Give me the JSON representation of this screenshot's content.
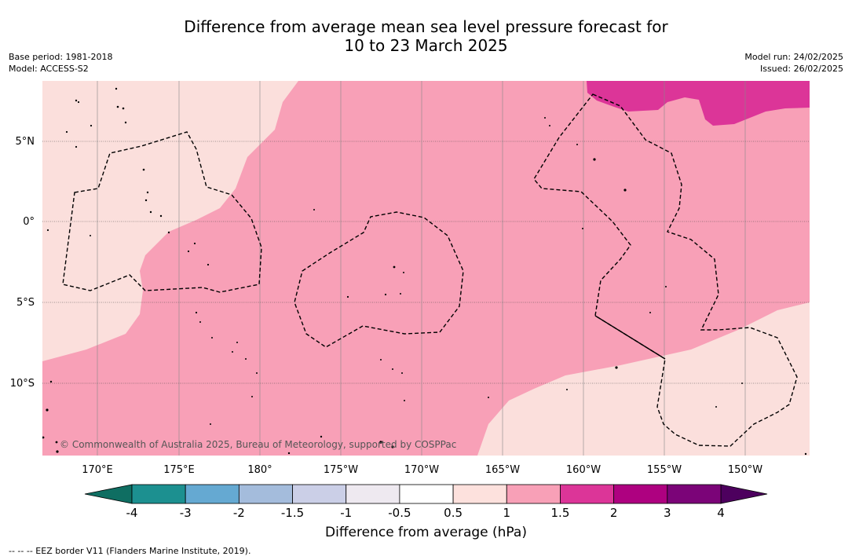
{
  "header": {
    "title_line1": "Difference from average mean sea level pressure forecast for",
    "title_line2": "10 to 23 March 2025",
    "base_period": "Base period: 1981-2018",
    "model": "Model: ACCESS-S2",
    "model_run": "Model run: 24/02/2025",
    "issued": "Issued: 26/02/2025"
  },
  "map": {
    "lat_labels": [
      "5°N",
      "0°",
      "5°S",
      "10°S"
    ],
    "lon_labels": [
      "170°E",
      "175°E",
      "180°",
      "175°W",
      "170°W",
      "165°W",
      "160°W",
      "155°W",
      "150°W"
    ],
    "copyright": "© Commonwealth of Australia 2025, Bureau of Meteorology, supported by COSPPac",
    "fill_colors": {
      "band_0_5_to_1": "#fbdfdc",
      "band_1_to_1_5": "#f8a0b7",
      "band_1_5_to_2": "#dc3598"
    }
  },
  "colorbar": {
    "tick_labels": [
      "-4",
      "-3",
      "-2",
      "-1.5",
      "-1",
      "-0.5",
      "0.5",
      "1",
      "1.5",
      "2",
      "3",
      "4"
    ],
    "colors": [
      "#1c9090",
      "#65a9d2",
      "#a4bcdc",
      "#cbcfe7",
      "#eee9f0",
      "#ffffff",
      "#fde1dd",
      "#f8a0b7",
      "#dc3598",
      "#ae0180",
      "#7b0478"
    ],
    "low_extend_color": "#0f6e62",
    "high_extend_color": "#4d005e",
    "label": "Difference from average (hPa)"
  },
  "footer": {
    "legend_text": "--  --  -- EEZ border V11 (Flanders Marine Institute, 2019)."
  }
}
